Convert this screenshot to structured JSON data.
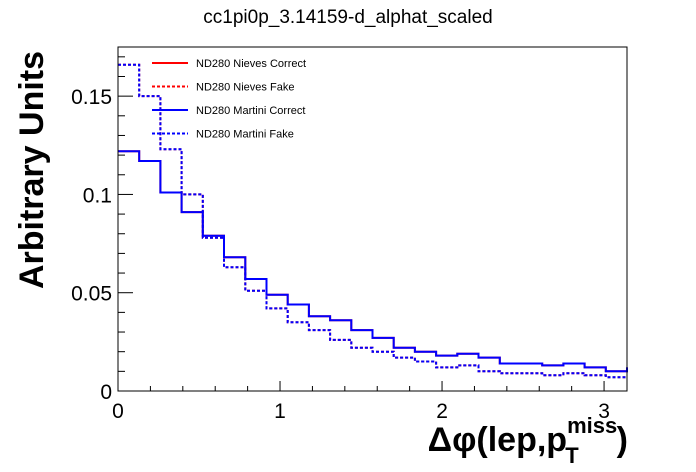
{
  "chart_data": {
    "type": "line",
    "title": "cc1pi0p_3.14159-d_alphat_scaled",
    "ylabel": "Arbitrary Units",
    "xlabel": {
      "main": "Δφ(lep,p",
      "sup": "miss",
      "sub": "T",
      "close": ")"
    },
    "xlim": [
      0,
      3.14159
    ],
    "ylim": [
      0,
      0.175
    ],
    "x_ticks": [
      0,
      1,
      2,
      3
    ],
    "x_tick_labels": [
      "0",
      "1",
      "2",
      "3"
    ],
    "y_ticks": [
      0,
      0.05,
      0.1,
      0.15
    ],
    "y_tick_labels": [
      "0",
      "0.05",
      "0.1",
      "0.15"
    ],
    "bin_edges": [
      0,
      0.1309,
      0.2618,
      0.3927,
      0.5236,
      0.6545,
      0.7854,
      0.9163,
      1.0472,
      1.1781,
      1.309,
      1.4399,
      1.5708,
      1.7017,
      1.8326,
      1.9635,
      2.0944,
      2.2253,
      2.3562,
      2.4871,
      2.618,
      2.7489,
      2.8798,
      3.0107,
      3.1416
    ],
    "legend_position": "top-left",
    "series": [
      {
        "name": "ND280 Nieves Correct",
        "color": "#ff0000",
        "style": "solid",
        "values": [
          0.122,
          0.117,
          0.101,
          0.091,
          0.079,
          0.068,
          0.057,
          0.049,
          0.044,
          0.038,
          0.036,
          0.031,
          0.027,
          0.022,
          0.02,
          0.018,
          0.019,
          0.017,
          0.014,
          0.014,
          0.013,
          0.014,
          0.012,
          0.01,
          0.012
        ]
      },
      {
        "name": "ND280 Nieves Fake",
        "color": "#ff0000",
        "style": "dashed",
        "values": [
          0.166,
          0.15,
          0.123,
          0.1,
          0.078,
          0.063,
          0.051,
          0.042,
          0.035,
          0.031,
          0.026,
          0.022,
          0.02,
          0.017,
          0.015,
          0.012,
          0.013,
          0.01,
          0.009,
          0.009,
          0.008,
          0.009,
          0.008,
          0.007,
          0.007
        ]
      },
      {
        "name": "ND280 Martini Correct",
        "color": "#0000ff",
        "style": "solid",
        "values": [
          0.122,
          0.117,
          0.101,
          0.091,
          0.079,
          0.068,
          0.057,
          0.049,
          0.044,
          0.038,
          0.036,
          0.031,
          0.027,
          0.022,
          0.02,
          0.018,
          0.019,
          0.017,
          0.014,
          0.014,
          0.013,
          0.014,
          0.012,
          0.01,
          0.012
        ]
      },
      {
        "name": "ND280 Martini Fake",
        "color": "#0000ff",
        "style": "dashed",
        "values": [
          0.166,
          0.15,
          0.123,
          0.1,
          0.078,
          0.063,
          0.051,
          0.042,
          0.035,
          0.031,
          0.026,
          0.022,
          0.02,
          0.017,
          0.015,
          0.012,
          0.013,
          0.01,
          0.009,
          0.009,
          0.008,
          0.009,
          0.008,
          0.007,
          0.007
        ]
      }
    ]
  }
}
